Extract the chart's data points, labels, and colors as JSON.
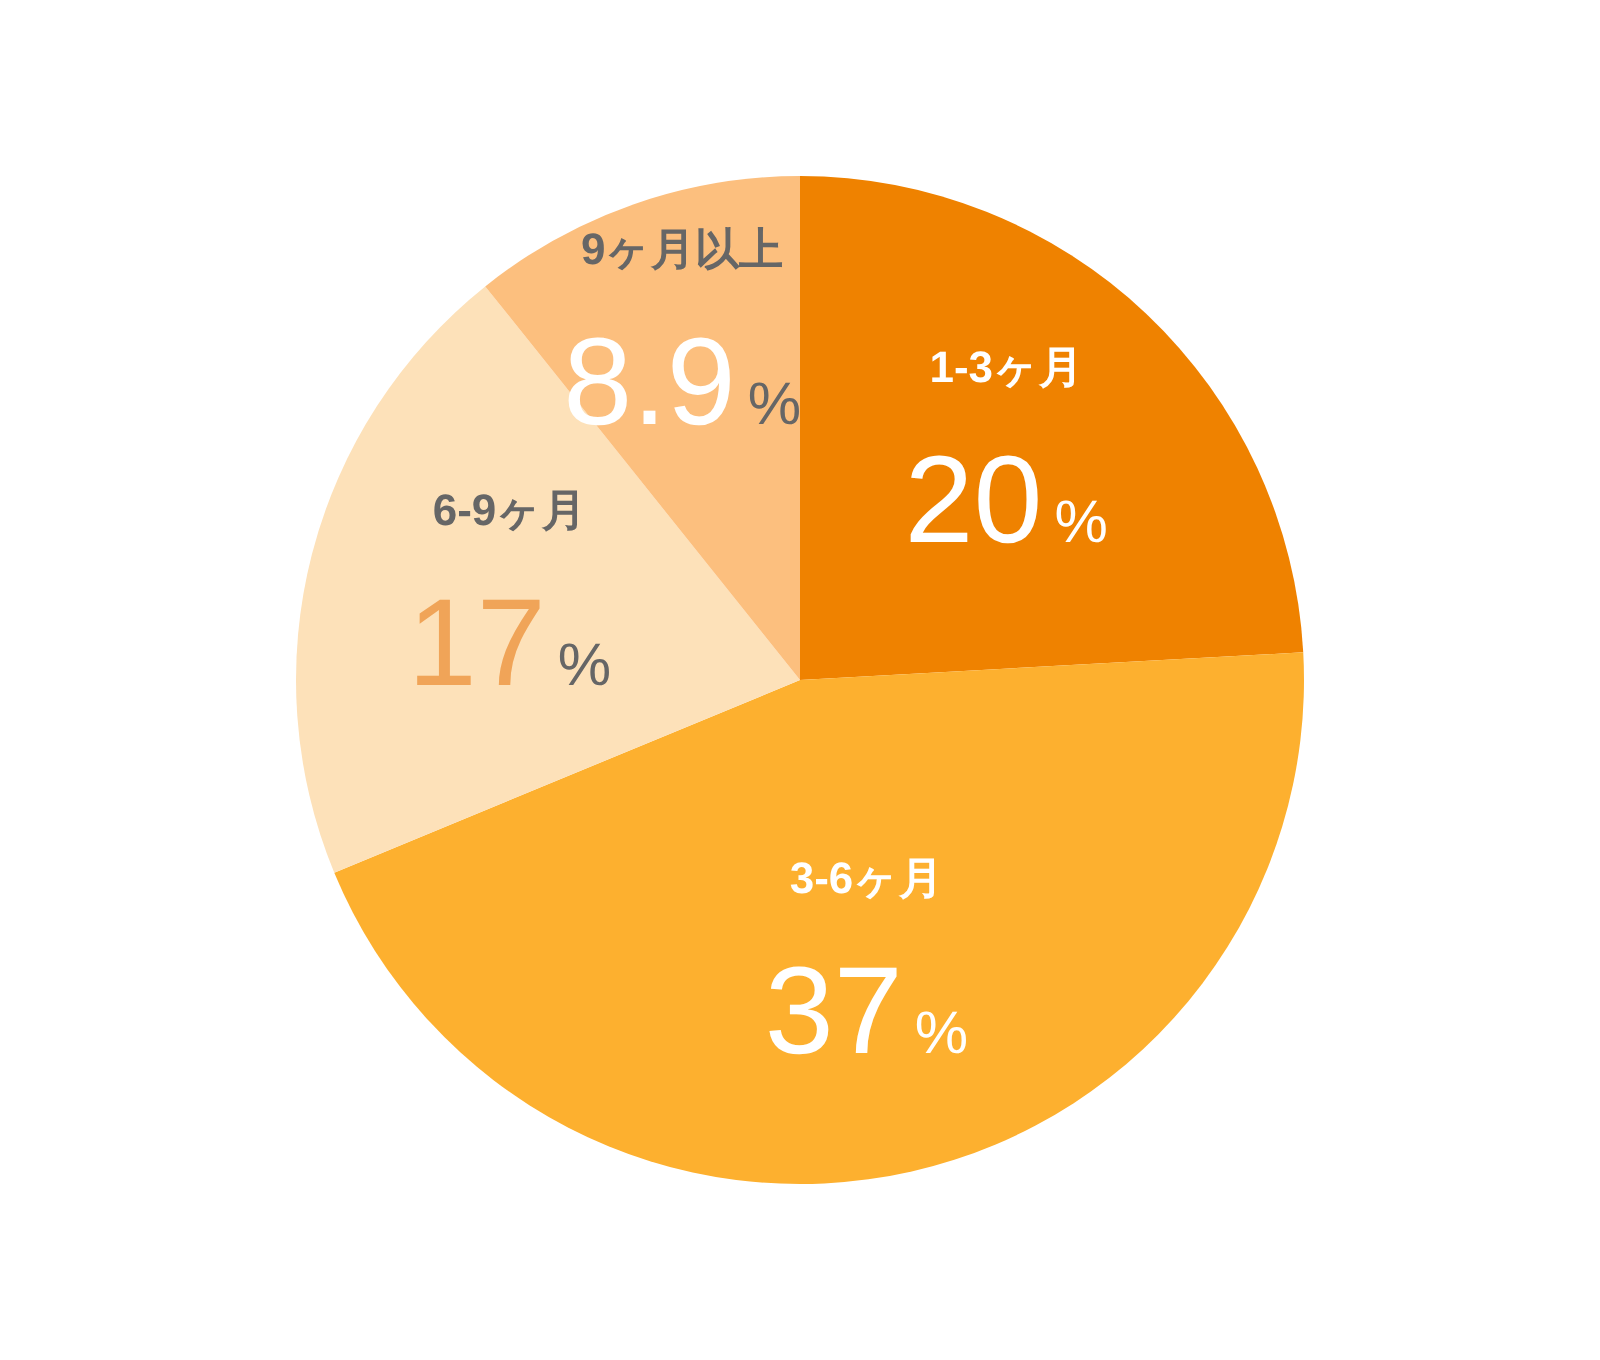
{
  "chart_data": {
    "type": "pie",
    "categories": [
      "1-3ヶ月",
      "3-6ヶ月",
      "6-9ヶ月",
      "9ヶ月以上"
    ],
    "values": [
      20,
      37,
      17,
      8.9
    ],
    "colors": [
      "#ef8200",
      "#fdb02f",
      "#fde1b9",
      "#fcbf7e"
    ],
    "value_labels": [
      "20%",
      "37%",
      "17%",
      "8.9%"
    ]
  }
}
